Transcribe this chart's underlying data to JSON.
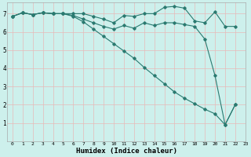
{
  "title": "",
  "xlabel": "Humidex (Indice chaleur)",
  "ylabel": "",
  "background_color": "#cdf0ec",
  "grid_color": "#e8b8b8",
  "line_color": "#2a7a70",
  "xlim": [
    -0.5,
    23
  ],
  "ylim": [
    0,
    7.6
  ],
  "yticks": [
    1,
    2,
    3,
    4,
    5,
    6,
    7
  ],
  "xticks": [
    0,
    1,
    2,
    3,
    4,
    5,
    6,
    7,
    8,
    9,
    10,
    11,
    12,
    13,
    14,
    15,
    16,
    17,
    18,
    19,
    20,
    21,
    22,
    23
  ],
  "series": [
    {
      "x": [
        0,
        1,
        2,
        3,
        4,
        5,
        6,
        7,
        8,
        9,
        10,
        11,
        12,
        13,
        14,
        15,
        16,
        17,
        18,
        19,
        20,
        21,
        22
      ],
      "y": [
        6.85,
        7.05,
        6.95,
        7.05,
        7.0,
        7.0,
        7.0,
        7.0,
        6.85,
        6.7,
        6.5,
        6.9,
        6.85,
        7.0,
        7.0,
        7.35,
        7.4,
        7.3,
        6.6,
        6.5,
        7.1,
        6.3,
        6.3
      ]
    },
    {
      "x": [
        0,
        1,
        2,
        3,
        4,
        5,
        6,
        7,
        8,
        9,
        10,
        11,
        12,
        13,
        14,
        15,
        16,
        17,
        18,
        19,
        20,
        21,
        22
      ],
      "y": [
        6.85,
        7.05,
        6.95,
        7.05,
        7.0,
        7.0,
        6.9,
        6.7,
        6.5,
        6.3,
        6.15,
        6.35,
        6.2,
        6.5,
        6.35,
        6.5,
        6.5,
        6.4,
        6.3,
        5.6,
        3.6,
        0.9,
        2.0
      ]
    },
    {
      "x": [
        0,
        1,
        2,
        3,
        4,
        5,
        6,
        7,
        8,
        9,
        10,
        11,
        12,
        13,
        14,
        15,
        16,
        17,
        18,
        19,
        20,
        21,
        22
      ],
      "y": [
        6.85,
        7.05,
        6.95,
        7.05,
        7.0,
        7.0,
        6.85,
        6.55,
        6.15,
        5.75,
        5.35,
        4.95,
        4.55,
        4.05,
        3.6,
        3.15,
        2.7,
        2.35,
        2.05,
        1.75,
        1.5,
        0.9,
        2.0
      ]
    }
  ]
}
